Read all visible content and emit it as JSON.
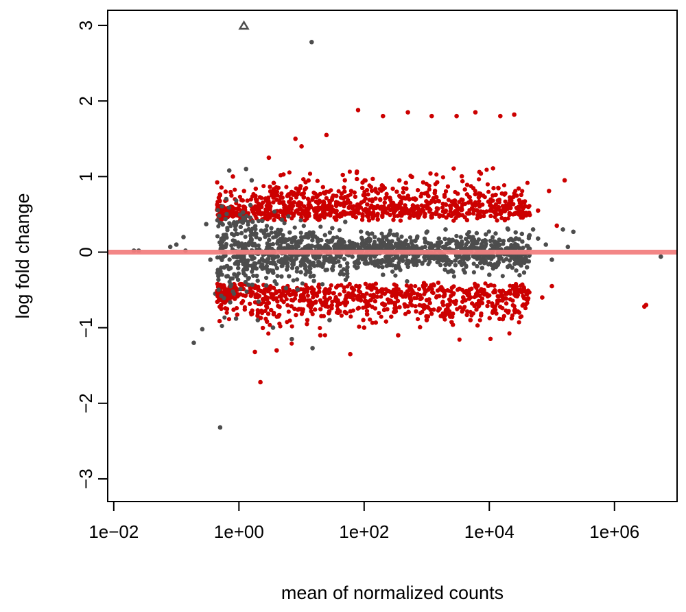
{
  "chart_data": {
    "type": "scatter",
    "title": "",
    "xlabel": "mean of normalized counts",
    "ylabel": "log fold change",
    "x_scale": "log10",
    "xlim": [
      0.008,
      10000000
    ],
    "ylim": [
      -3.2,
      3.0
    ],
    "x_ticks": [
      {
        "value": 0.01,
        "label": "1e−02"
      },
      {
        "value": 1,
        "label": "1e+00"
      },
      {
        "value": 100,
        "label": "1e+02"
      },
      {
        "value": 10000,
        "label": "1e+04"
      },
      {
        "value": 1000000,
        "label": "1e+06"
      }
    ],
    "y_ticks": [
      {
        "value": -3,
        "label": "−3"
      },
      {
        "value": -2,
        "label": "−2"
      },
      {
        "value": -1,
        "label": "−1"
      },
      {
        "value": 0,
        "label": "0"
      },
      {
        "value": 1,
        "label": "1"
      },
      {
        "value": 2,
        "label": "2"
      },
      {
        "value": 3,
        "label": "3"
      }
    ],
    "reference_line": {
      "y": 0,
      "color": "#f28080"
    },
    "colors": {
      "significant": "#cc0000",
      "not_significant": "#4d4d4d",
      "outlier_marker": "#4d4d4d"
    },
    "grid": false,
    "legend": false,
    "series": [
      {
        "role": "not_significant",
        "points": [
          [
            0.021,
            0.02
          ],
          [
            0.025,
            0.02
          ],
          [
            0.08,
            0.07
          ],
          [
            0.1,
            0.1
          ],
          [
            0.13,
            0.2
          ],
          [
            0.14,
            0.02
          ],
          [
            0.19,
            -1.2
          ],
          [
            0.26,
            -1.02
          ],
          [
            0.3,
            0.37
          ],
          [
            0.35,
            -0.1
          ],
          [
            0.42,
            -0.55
          ],
          [
            0.5,
            -2.32
          ],
          [
            0.55,
            0.5
          ],
          [
            0.7,
            1.08
          ],
          [
            0.9,
            -0.88
          ],
          [
            1.3,
            1.1
          ],
          [
            1.6,
            0.95
          ],
          [
            2.0,
            -0.9
          ],
          [
            3.5,
            -1.0
          ],
          [
            7.0,
            -1.15
          ],
          [
            14.5,
            2.78
          ],
          [
            15,
            -1.27
          ],
          [
            28,
            -0.9
          ],
          [
            50,
            0.4
          ],
          [
            200,
            -0.3
          ],
          [
            2000,
            0.3
          ],
          [
            10000,
            -0.3
          ],
          [
            20000,
            0.3
          ],
          [
            40000,
            -0.2
          ],
          [
            50000,
            0.3
          ],
          [
            60000,
            0.18
          ],
          [
            80000,
            0.1
          ],
          [
            100000,
            -0.1
          ],
          [
            150000,
            0.3
          ],
          [
            180000,
            0.07
          ],
          [
            220000,
            0.27
          ],
          [
            5500000,
            -0.06
          ]
        ]
      },
      {
        "role": "significant",
        "points": [
          [
            0.8,
            1.0
          ],
          [
            1.8,
            -1.32
          ],
          [
            2.2,
            -1.72
          ],
          [
            3,
            1.25
          ],
          [
            8,
            1.5
          ],
          [
            10,
            1.4
          ],
          [
            25,
            1.55
          ],
          [
            80,
            1.88
          ],
          [
            200,
            1.8
          ],
          [
            500,
            1.85
          ],
          [
            1200,
            1.8
          ],
          [
            3000,
            1.8
          ],
          [
            6000,
            1.85
          ],
          [
            15000,
            1.8
          ],
          [
            25000,
            1.82
          ],
          [
            60000,
            0.55
          ],
          [
            90000,
            0.81
          ],
          [
            120000,
            0.35
          ],
          [
            160000,
            0.95
          ],
          [
            4,
            -1.3
          ],
          [
            20,
            -1.1
          ],
          [
            60,
            -1.35
          ],
          [
            100,
            -1.0
          ],
          [
            350,
            -1.1
          ],
          [
            1000,
            -0.9
          ],
          [
            5000,
            -0.9
          ],
          [
            20000,
            -0.8
          ],
          [
            30000,
            -0.8
          ],
          [
            70000,
            -0.6
          ],
          [
            100000,
            -0.45
          ],
          [
            3200000,
            -0.7
          ],
          [
            3000000,
            -0.72
          ]
        ]
      }
    ],
    "outliers": [
      {
        "x": 1.2,
        "y": 3,
        "shape": "triangle"
      }
    ]
  }
}
